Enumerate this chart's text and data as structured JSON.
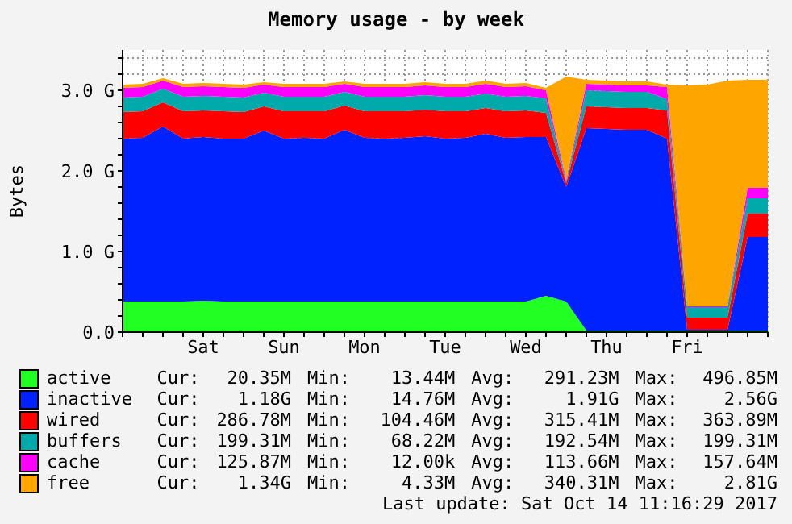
{
  "chart_data": {
    "type": "area",
    "title": "Memory usage - by week",
    "ylabel": "Bytes",
    "stacked": true,
    "grid": true,
    "legend": "bottom",
    "categories": [
      null,
      null,
      null,
      null,
      "Sat",
      null,
      null,
      null,
      "Sun",
      null,
      null,
      null,
      "Mon",
      null,
      null,
      null,
      "Tue",
      null,
      null,
      null,
      "Wed",
      null,
      null,
      null,
      "Thu",
      null,
      null,
      null,
      "Fri",
      null,
      null,
      null,
      null
    ],
    "ylim": [
      0,
      3.5
    ],
    "yticks": [
      {
        "value": 0,
        "label": "0.0"
      },
      {
        "value": 0.2,
        "label": null
      },
      {
        "value": 0.4,
        "label": null
      },
      {
        "value": 0.6,
        "label": null
      },
      {
        "value": 0.8,
        "label": null
      },
      {
        "value": 1,
        "label": "1.0 G"
      },
      {
        "value": 1.2,
        "label": null
      },
      {
        "value": 1.4,
        "label": null
      },
      {
        "value": 1.6,
        "label": null
      },
      {
        "value": 1.8,
        "label": null
      },
      {
        "value": 2,
        "label": "2.0 G"
      },
      {
        "value": 2.2,
        "label": null
      },
      {
        "value": 2.4,
        "label": null
      },
      {
        "value": 2.6,
        "label": null
      },
      {
        "value": 2.8,
        "label": null
      },
      {
        "value": 3,
        "label": "3.0 G"
      },
      {
        "value": 3.2,
        "label": null
      },
      {
        "value": 3.4,
        "label": null
      }
    ],
    "series": [
      {
        "name": "active",
        "color": "#22ff22",
        "values": [
          0.38,
          0.38,
          0.38,
          0.38,
          0.39,
          0.38,
          0.38,
          0.38,
          0.38,
          0.38,
          0.38,
          0.38,
          0.38,
          0.38,
          0.38,
          0.38,
          0.38,
          0.38,
          0.38,
          0.38,
          0.38,
          0.45,
          0.38,
          0.02,
          0.02,
          0.02,
          0.02,
          0.02,
          0.02,
          0.02,
          0.02,
          0.02,
          0.02
        ]
      },
      {
        "name": "inactive",
        "color": "#0022ff",
        "values": [
          2.02,
          2.03,
          2.17,
          2.02,
          2.03,
          2.02,
          2.02,
          2.12,
          2.02,
          2.03,
          2.02,
          2.13,
          2.03,
          2.02,
          2.03,
          2.05,
          2.02,
          2.03,
          2.08,
          2.03,
          2.04,
          1.97,
          1.42,
          2.51,
          2.5,
          2.49,
          2.49,
          2.38,
          0.01,
          0.01,
          0.01,
          1.16,
          1.16
        ]
      },
      {
        "name": "wired",
        "color": "#ff0000",
        "values": [
          0.33,
          0.33,
          0.3,
          0.34,
          0.33,
          0.34,
          0.33,
          0.3,
          0.34,
          0.33,
          0.34,
          0.3,
          0.33,
          0.34,
          0.33,
          0.33,
          0.34,
          0.33,
          0.32,
          0.33,
          0.33,
          0.3,
          0.05,
          0.27,
          0.27,
          0.27,
          0.27,
          0.35,
          0.15,
          0.15,
          0.15,
          0.29,
          0.29
        ]
      },
      {
        "name": "buffers",
        "color": "#00aaaa",
        "values": [
          0.18,
          0.18,
          0.17,
          0.18,
          0.18,
          0.18,
          0.18,
          0.17,
          0.18,
          0.18,
          0.18,
          0.17,
          0.18,
          0.18,
          0.18,
          0.18,
          0.18,
          0.18,
          0.18,
          0.18,
          0.18,
          0.18,
          0.02,
          0.2,
          0.2,
          0.2,
          0.2,
          0.14,
          0.13,
          0.13,
          0.13,
          0.19,
          0.19
        ]
      },
      {
        "name": "cache",
        "color": "#ff00ff",
        "values": [
          0.12,
          0.12,
          0.1,
          0.12,
          0.12,
          0.12,
          0.12,
          0.1,
          0.12,
          0.12,
          0.12,
          0.1,
          0.12,
          0.12,
          0.12,
          0.12,
          0.12,
          0.12,
          0.12,
          0.12,
          0.12,
          0.1,
          0.02,
          0.08,
          0.08,
          0.08,
          0.08,
          0.15,
          0.01,
          0.01,
          0.01,
          0.13,
          0.13
        ]
      },
      {
        "name": "free",
        "color": "#ffa500",
        "values": [
          0.04,
          0.04,
          0.03,
          0.04,
          0.04,
          0.04,
          0.04,
          0.03,
          0.04,
          0.04,
          0.04,
          0.03,
          0.04,
          0.04,
          0.04,
          0.04,
          0.04,
          0.04,
          0.04,
          0.04,
          0.04,
          0.03,
          1.28,
          0.05,
          0.05,
          0.05,
          0.05,
          0.03,
          2.74,
          2.75,
          2.8,
          1.34,
          1.34
        ]
      }
    ],
    "annotations": [
      "Cur: 20.35M Min: 13.44M Avg: 291.23M Max: 496.85M",
      "Cur: 1.18G Min: 14.76M Avg: 1.91G Max: 2.56G",
      "Cur: 286.78M Min: 104.46M Avg: 315.41M Max: 363.89M",
      "Cur: 199.31M Min: 68.22M Avg: 192.54M Max: 199.31M",
      "Cur: 125.87M Min: 12.00k Avg: 113.66M Max: 157.64M",
      "Cur: 1.34G Min: 4.33M Avg: 340.31M Max: 2.81G",
      "Last update: Sat Oct 14 11:16:29 2017"
    ]
  }
}
